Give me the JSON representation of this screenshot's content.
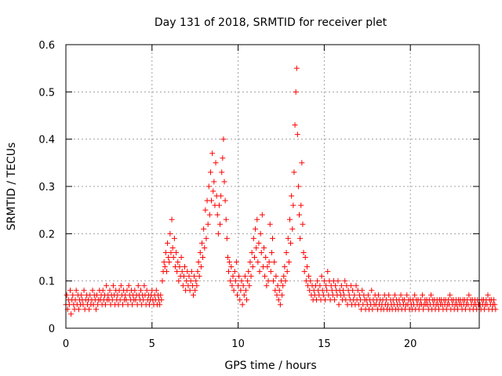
{
  "chart_data": {
    "type": "scatter",
    "title": "Day 131 of 2018, SRMTID for receiver plet",
    "xlabel": "GPS time / hours",
    "ylabel": "SRMTID / TECUs",
    "xlim": [
      0,
      24
    ],
    "ylim": [
      0,
      0.6
    ],
    "x_ticks": [
      0,
      5,
      10,
      15,
      20
    ],
    "x_tick_labels": [
      "0",
      "5",
      "10",
      "15",
      "20"
    ],
    "y_ticks": [
      0,
      0.1,
      0.2,
      0.3,
      0.4,
      0.5,
      0.6
    ],
    "y_tick_labels": [
      "0",
      "0.1",
      "0.2",
      "0.3",
      "0.4",
      "0.5",
      "0.6"
    ],
    "grid": true,
    "marker": "+",
    "marker_color": "#ff0000",
    "series": [
      {
        "name": "SRMTID",
        "sampling_interval_hours": 0.05,
        "x_start": 0,
        "y": [
          0.05,
          0.07,
          0.04,
          0.06,
          0.05,
          0.08,
          0.03,
          0.06,
          0.07,
          0.05,
          0.04,
          0.06,
          0.08,
          0.05,
          0.07,
          0.04,
          0.06,
          0.05,
          0.07,
          0.06,
          0.05,
          0.08,
          0.04,
          0.06,
          0.07,
          0.05,
          0.06,
          0.04,
          0.07,
          0.05,
          0.06,
          0.08,
          0.05,
          0.07,
          0.06,
          0.04,
          0.07,
          0.05,
          0.06,
          0.08,
          0.06,
          0.07,
          0.05,
          0.08,
          0.06,
          0.07,
          0.05,
          0.09,
          0.06,
          0.07,
          0.06,
          0.08,
          0.05,
          0.07,
          0.06,
          0.09,
          0.07,
          0.05,
          0.08,
          0.06,
          0.07,
          0.05,
          0.08,
          0.06,
          0.09,
          0.07,
          0.05,
          0.08,
          0.06,
          0.07,
          0.06,
          0.08,
          0.05,
          0.09,
          0.07,
          0.06,
          0.08,
          0.05,
          0.07,
          0.06,
          0.08,
          0.06,
          0.07,
          0.05,
          0.09,
          0.07,
          0.06,
          0.08,
          0.05,
          0.07,
          0.06,
          0.09,
          0.07,
          0.05,
          0.08,
          0.06,
          0.07,
          0.05,
          0.06,
          0.07,
          0.08,
          0.06,
          0.05,
          0.07,
          0.06,
          0.08,
          0.05,
          0.07,
          0.06,
          0.05,
          0.07,
          0.06,
          0.1,
          0.12,
          0.14,
          0.13,
          0.16,
          0.12,
          0.18,
          0.15,
          0.14,
          0.2,
          0.16,
          0.23,
          0.17,
          0.15,
          0.19,
          0.13,
          0.16,
          0.12,
          0.14,
          0.1,
          0.13,
          0.11,
          0.15,
          0.12,
          0.09,
          0.11,
          0.13,
          0.08,
          0.1,
          0.12,
          0.09,
          0.11,
          0.08,
          0.1,
          0.12,
          0.09,
          0.07,
          0.11,
          0.08,
          0.1,
          0.09,
          0.12,
          0.14,
          0.11,
          0.16,
          0.13,
          0.18,
          0.15,
          0.21,
          0.17,
          0.25,
          0.19,
          0.27,
          0.22,
          0.3,
          0.24,
          0.33,
          0.27,
          0.37,
          0.29,
          0.31,
          0.26,
          0.35,
          0.28,
          0.24,
          0.2,
          0.26,
          0.22,
          0.28,
          0.33,
          0.36,
          0.4,
          0.31,
          0.27,
          0.23,
          0.19,
          0.15,
          0.12,
          0.14,
          0.1,
          0.13,
          0.09,
          0.11,
          0.08,
          0.12,
          0.1,
          0.14,
          0.07,
          0.09,
          0.11,
          0.06,
          0.08,
          0.1,
          0.05,
          0.09,
          0.07,
          0.11,
          0.08,
          0.06,
          0.1,
          0.12,
          0.09,
          0.14,
          0.11,
          0.16,
          0.13,
          0.19,
          0.15,
          0.21,
          0.17,
          0.23,
          0.14,
          0.18,
          0.12,
          0.2,
          0.16,
          0.24,
          0.13,
          0.17,
          0.11,
          0.15,
          0.09,
          0.13,
          0.1,
          0.14,
          0.22,
          0.12,
          0.16,
          0.19,
          0.1,
          0.14,
          0.08,
          0.11,
          0.07,
          0.09,
          0.06,
          0.08,
          0.05,
          0.1,
          0.07,
          0.09,
          0.11,
          0.13,
          0.1,
          0.16,
          0.12,
          0.19,
          0.14,
          0.23,
          0.18,
          0.28,
          0.21,
          0.26,
          0.33,
          0.43,
          0.5,
          0.55,
          0.41,
          0.3,
          0.24,
          0.19,
          0.26,
          0.35,
          0.22,
          0.16,
          0.12,
          0.15,
          0.1,
          0.13,
          0.09,
          0.11,
          0.08,
          0.1,
          0.07,
          0.09,
          0.06,
          0.08,
          0.07,
          0.09,
          0.06,
          0.1,
          0.08,
          0.07,
          0.09,
          0.06,
          0.11,
          0.08,
          0.07,
          0.1,
          0.06,
          0.09,
          0.08,
          0.12,
          0.07,
          0.1,
          0.06,
          0.09,
          0.08,
          0.07,
          0.1,
          0.06,
          0.09,
          0.08,
          0.07,
          0.1,
          0.05,
          0.08,
          0.07,
          0.09,
          0.06,
          0.08,
          0.07,
          0.1,
          0.06,
          0.09,
          0.05,
          0.08,
          0.07,
          0.06,
          0.09,
          0.05,
          0.08,
          0.06,
          0.07,
          0.05,
          0.09,
          0.06,
          0.08,
          0.05,
          0.07,
          0.06,
          0.04,
          0.08,
          0.05,
          0.07,
          0.06,
          0.04,
          0.06,
          0.05,
          0.07,
          0.04,
          0.06,
          0.05,
          0.08,
          0.04,
          0.06,
          0.05,
          0.07,
          0.05,
          0.06,
          0.04,
          0.07,
          0.05,
          0.06,
          0.04,
          0.05,
          0.06,
          0.04,
          0.07,
          0.05,
          0.06,
          0.04,
          0.05,
          0.07,
          0.04,
          0.06,
          0.05,
          0.04,
          0.06,
          0.05,
          0.07,
          0.04,
          0.06,
          0.05,
          0.04,
          0.06,
          0.05,
          0.07,
          0.04,
          0.06,
          0.05,
          0.06,
          0.04,
          0.05,
          0.07,
          0.05,
          0.06,
          0.04,
          0.06,
          0.05,
          0.04,
          0.06,
          0.05,
          0.07,
          0.04,
          0.06,
          0.05,
          0.06,
          0.04,
          0.05,
          0.06,
          0.05,
          0.07,
          0.04,
          0.05,
          0.06,
          0.05,
          0.06,
          0.05,
          0.04,
          0.06,
          0.05,
          0.07,
          0.04,
          0.06,
          0.05,
          0.06,
          0.04,
          0.05,
          0.06,
          0.05,
          0.04,
          0.06,
          0.05,
          0.06,
          0.05,
          0.04,
          0.06,
          0.05,
          0.06,
          0.04,
          0.05,
          0.06,
          0.05,
          0.07,
          0.04,
          0.06,
          0.05,
          0.06,
          0.04,
          0.05,
          0.06,
          0.05,
          0.04,
          0.06,
          0.05,
          0.06,
          0.05,
          0.04,
          0.06,
          0.05,
          0.06,
          0.04,
          0.05,
          0.06,
          0.05,
          0.07,
          0.04,
          0.06,
          0.05,
          0.06,
          0.04,
          0.05,
          0.06,
          0.05,
          0.04,
          0.06,
          0.05,
          0.06,
          0.05,
          0.04,
          0.06,
          0.05,
          0.06,
          0.04,
          0.05,
          0.06,
          0.05,
          0.07,
          0.04,
          0.06,
          0.05,
          0.06,
          0.04,
          0.05,
          0.06,
          0.05,
          0.04
        ]
      }
    ]
  }
}
